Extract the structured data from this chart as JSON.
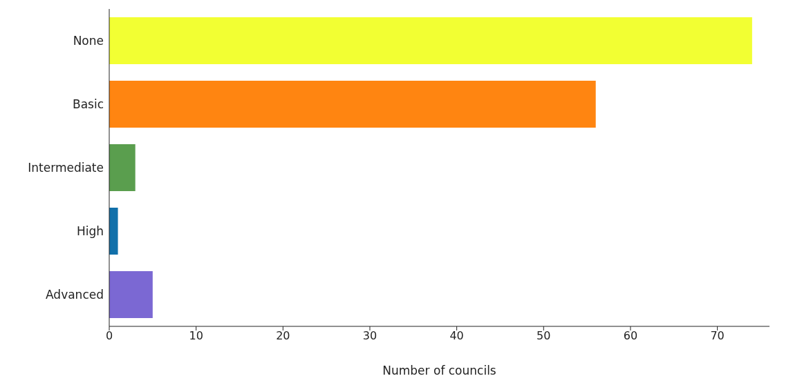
{
  "chart_data": {
    "type": "bar",
    "orientation": "horizontal",
    "xlabel": "Number of councils",
    "categories": [
      "None",
      "Basic",
      "Intermediate",
      "High",
      "Advanced"
    ],
    "values": [
      74,
      56,
      3,
      1,
      5
    ],
    "colors": [
      "#f2ff33",
      "#ff8511",
      "#5a9e4e",
      "#1170aa",
      "#7b68d3"
    ],
    "xlim": [
      0,
      76
    ],
    "xticks": [
      0,
      10,
      20,
      30,
      40,
      50,
      60,
      70
    ],
    "grid": false
  }
}
